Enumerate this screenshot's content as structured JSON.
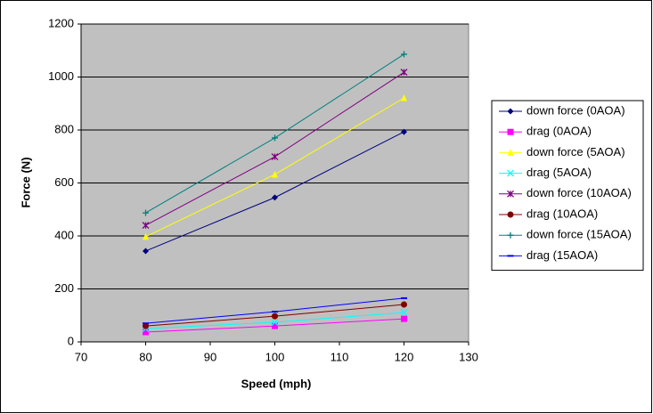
{
  "chart_data": {
    "type": "line",
    "x_label": "Speed (mph)",
    "y_label": "Force (N)",
    "x": [
      80,
      100,
      120
    ],
    "xlim": [
      70,
      130
    ],
    "xticks": [
      70,
      80,
      90,
      100,
      110,
      120,
      130
    ],
    "ylim": [
      0,
      1200
    ],
    "yticks": [
      0,
      200,
      400,
      600,
      800,
      1000,
      1200
    ],
    "grid": true,
    "legend": "right",
    "plot_background": "#c0c0c0",
    "series": [
      {
        "name": "down force (0AOA)",
        "color": "#000080",
        "marker": "diamond",
        "values": [
          343,
          545,
          793
        ]
      },
      {
        "name": "drag (0AOA)",
        "color": "#ff00ff",
        "marker": "square",
        "values": [
          37,
          60,
          87
        ]
      },
      {
        "name": "down force (5AOA)",
        "color": "#ffff00",
        "marker": "triangle",
        "values": [
          397,
          632,
          921
        ]
      },
      {
        "name": "drag (5AOA)",
        "color": "#00ffff",
        "marker": "x",
        "values": [
          50,
          74,
          111
        ]
      },
      {
        "name": "down force (10AOA)",
        "color": "#800080",
        "marker": "star",
        "values": [
          440,
          699,
          1018
        ]
      },
      {
        "name": "drag (10AOA)",
        "color": "#800000",
        "marker": "circle",
        "values": [
          60,
          97,
          141
        ]
      },
      {
        "name": "down force (15AOA)",
        "color": "#008080",
        "marker": "plus",
        "values": [
          487,
          770,
          1086
        ]
      },
      {
        "name": "drag (15AOA)",
        "color": "#0000ff",
        "marker": "dash",
        "values": [
          70,
          114,
          165
        ]
      }
    ]
  }
}
